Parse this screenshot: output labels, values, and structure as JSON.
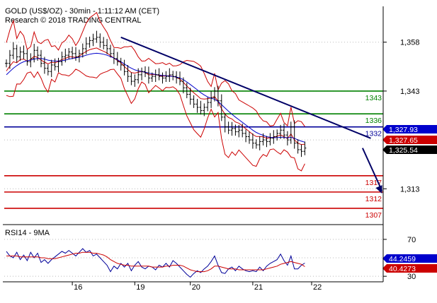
{
  "header": {
    "title": "GOLD (US$/OZ) - 30min - 1:11:12 AM (CET)",
    "subtitle": "Research © 2018 TRADING CENTRAL"
  },
  "colors": {
    "price_bars": "#000000",
    "bollinger": "#cc0000",
    "moving_average": "#0000cc",
    "trendline": "#000066",
    "support": "#cc0000",
    "resistance": "#008000",
    "pivot": "#000099",
    "forecast_arrow": "#000066",
    "rsi": "#000099",
    "rsi_signal": "#cc0000",
    "price_badge_blue": "#0000cc",
    "price_badge_red": "#cc0000",
    "price_badge_black": "#000000"
  },
  "chart_data": [
    {
      "type": "candlestick",
      "title": "GOLD (US$/OZ) - 30min - 1:11:12 AM (CET)",
      "x_ticks": [
        "16",
        "19",
        "20",
        "21",
        "22"
      ],
      "y_ticks": [
        1358,
        1343,
        1328,
        1313
      ],
      "y_tick_labels": [
        "1,358",
        "1,343",
        "",
        "1,313"
      ],
      "ylim": [
        1302,
        1369
      ],
      "grid": "dotted horizontal",
      "closes": [
        1351.5,
        1354.0,
        1356.0,
        1353.5,
        1355.0,
        1354.5,
        1352.0,
        1353.0,
        1355.5,
        1354.0,
        1351.5,
        1350.0,
        1349.0,
        1351.0,
        1350.5,
        1352.0,
        1353.5,
        1354.0,
        1355.0,
        1354.5,
        1353.5,
        1354.5,
        1356.0,
        1357.5,
        1358.5,
        1359.0,
        1359.5,
        1358.0,
        1357.0,
        1356.0,
        1354.5,
        1353.0,
        1352.0,
        1351.0,
        1349.0,
        1347.5,
        1346.0,
        1346.5,
        1348.0,
        1349.0,
        1348.5,
        1347.0,
        1347.5,
        1348.0,
        1347.5,
        1347.0,
        1347.5,
        1348.0,
        1347.5,
        1347.0,
        1346.0,
        1344.0,
        1342.0,
        1340.5,
        1339.0,
        1338.0,
        1337.0,
        1338.0,
        1339.5,
        1341.0,
        1343.0,
        1340.0,
        1335.0,
        1332.0,
        1331.0,
        1331.5,
        1330.5,
        1331.0,
        1330.0,
        1329.0,
        1328.0,
        1327.0,
        1326.5,
        1327.5,
        1328.0,
        1327.5,
        1328.5,
        1329.0,
        1330.0,
        1331.0,
        1329.5,
        1328.0,
        1332.0,
        1327.0,
        1325.0,
        1324.5,
        1325.5
      ],
      "moving_average": [
        1348.0,
        1349.0,
        1350.0,
        1350.8,
        1351.5,
        1352.0,
        1352.3,
        1352.5,
        1352.8,
        1353.0,
        1353.0,
        1352.8,
        1352.5,
        1352.3,
        1352.2,
        1352.2,
        1352.3,
        1352.5,
        1352.8,
        1353.0,
        1353.2,
        1353.4,
        1353.7,
        1354.0,
        1354.3,
        1354.5,
        1354.6,
        1354.5,
        1354.3,
        1354.0,
        1353.6,
        1353.1,
        1352.6,
        1352.0,
        1351.3,
        1350.6,
        1350.0,
        1349.5,
        1349.2,
        1349.0,
        1348.8,
        1348.5,
        1348.3,
        1348.1,
        1347.9,
        1347.8,
        1347.7,
        1347.6,
        1347.5,
        1347.3,
        1347.0,
        1346.5,
        1345.8,
        1345.0,
        1344.2,
        1343.4,
        1342.5,
        1341.8,
        1341.2,
        1340.8,
        1340.5,
        1339.8,
        1338.8,
        1337.8,
        1336.8,
        1335.9,
        1335.0,
        1334.2,
        1333.4,
        1332.6,
        1331.8,
        1331.0,
        1330.3,
        1329.8,
        1329.4,
        1329.0,
        1328.8,
        1328.7,
        1328.7,
        1328.8,
        1328.8,
        1328.6,
        1328.8,
        1328.5,
        1328.0,
        1327.6,
        1327.3
      ],
      "trendline": {
        "from": [
          33,
          1359.5
        ],
        "to": [
          105,
          1328.5
        ]
      },
      "forecast": {
        "from": [
          101,
          1325.5
        ],
        "to": [
          107,
          1311.5
        ]
      },
      "levels": [
        {
          "value": 1343,
          "label": "1343",
          "kind": "resistance"
        },
        {
          "value": 1336,
          "label": "1336",
          "kind": "resistance"
        },
        {
          "value": 1332,
          "label": "1332",
          "kind": "pivot"
        },
        {
          "value": 1317,
          "label": "1317",
          "kind": "support"
        },
        {
          "value": 1312,
          "label": "1312",
          "kind": "support"
        },
        {
          "value": 1307,
          "label": "1307",
          "kind": "support"
        }
      ],
      "price_badges": [
        {
          "value": "1,327.93",
          "color": "blue"
        },
        {
          "value": "1,327.65",
          "color": "red"
        },
        {
          "value": "1,325.54",
          "color": "black"
        }
      ]
    },
    {
      "type": "line",
      "title": "RSI14 - 9MA",
      "y_ticks": [
        70,
        50,
        30
      ],
      "y_tick_labels": [
        "70",
        "",
        "30"
      ],
      "ylim": [
        24,
        86
      ],
      "series": [
        {
          "name": "RSI14",
          "values": [
            57,
            52,
            50,
            56,
            48,
            53,
            47,
            56,
            50,
            55,
            45,
            48,
            44,
            48,
            51,
            54,
            57,
            55,
            58,
            55,
            52,
            56,
            60,
            56,
            58,
            52,
            54,
            50,
            46,
            42,
            35,
            41,
            38,
            44,
            40,
            44,
            36,
            42,
            46,
            40,
            38,
            41,
            40,
            37,
            42,
            40,
            44,
            40,
            47,
            44,
            40,
            36,
            32,
            29,
            33,
            36,
            34,
            38,
            41,
            46,
            52,
            42,
            34,
            33,
            38,
            40,
            36,
            41,
            38,
            36,
            35,
            36,
            35,
            40,
            36,
            41,
            44,
            46,
            48,
            54,
            47,
            42,
            52,
            38,
            38,
            42,
            44.25
          ]
        },
        {
          "name": "9MA",
          "values": [
            52,
            52,
            52,
            52,
            51,
            51,
            51,
            51,
            51,
            51,
            50,
            50,
            49,
            49,
            49,
            50,
            51,
            52,
            53,
            54,
            55,
            55,
            56,
            56,
            56,
            55,
            55,
            54,
            53,
            51,
            48,
            46,
            44,
            43,
            42,
            42,
            41,
            41,
            41,
            41,
            41,
            41,
            40,
            40,
            40,
            40,
            41,
            41,
            42,
            42,
            42,
            41,
            39,
            37,
            36,
            35,
            35,
            35,
            36,
            38,
            41,
            41,
            40,
            39,
            38,
            38,
            38,
            37,
            37,
            37,
            37,
            37,
            37,
            37,
            37,
            38,
            39,
            40,
            41,
            43,
            44,
            45,
            46,
            45,
            44,
            43,
            40.43
          ]
        }
      ],
      "value_badges": [
        {
          "value": "44.2459",
          "color": "blue"
        },
        {
          "value": "40.4273",
          "color": "red"
        }
      ]
    }
  ]
}
